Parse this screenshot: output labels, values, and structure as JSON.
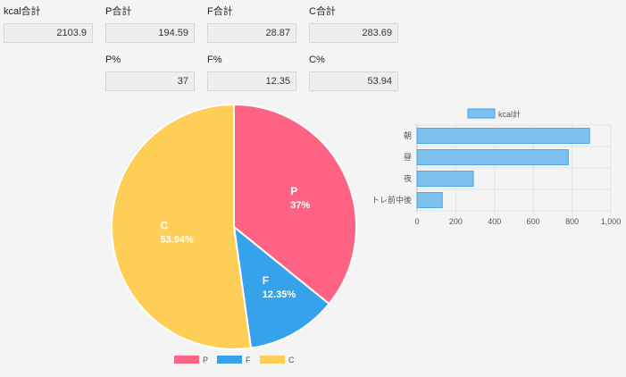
{
  "totals": {
    "kcal": {
      "label": "kcal合計",
      "value": "2103.9"
    },
    "p": {
      "label": "P合計",
      "value": "194.59"
    },
    "f": {
      "label": "F合計",
      "value": "28.87"
    },
    "c": {
      "label": "C合計",
      "value": "283.69"
    }
  },
  "percents": {
    "p": {
      "label": "P%",
      "value": "37"
    },
    "f": {
      "label": "F%",
      "value": "12.35"
    },
    "c": {
      "label": "C%",
      "value": "53.94"
    }
  },
  "chart_data": [
    {
      "type": "pie",
      "labels": [
        "P",
        "F",
        "C"
      ],
      "values": [
        37,
        12.35,
        53.94
      ],
      "data_labels": [
        "37%",
        "12.35%",
        "53.94%"
      ],
      "colors": [
        "#ff6384",
        "#36a2eb",
        "#ffce56"
      ],
      "legend": "bottom"
    },
    {
      "type": "bar",
      "orientation": "horizontal",
      "categories": [
        "朝",
        "昼",
        "夜",
        "トレ前中後"
      ],
      "series": [
        {
          "name": "kcal計",
          "values": [
            890,
            780,
            290,
            130
          ]
        }
      ],
      "xlim": [
        0,
        1000
      ],
      "xticks": [
        "0",
        "200",
        "400",
        "600",
        "800",
        "1,000"
      ],
      "tick_values": [
        0,
        200,
        400,
        600,
        800,
        1000
      ],
      "bar_color": "#80c0ee",
      "bar_border": "#36a2eb",
      "legend": "top"
    }
  ]
}
